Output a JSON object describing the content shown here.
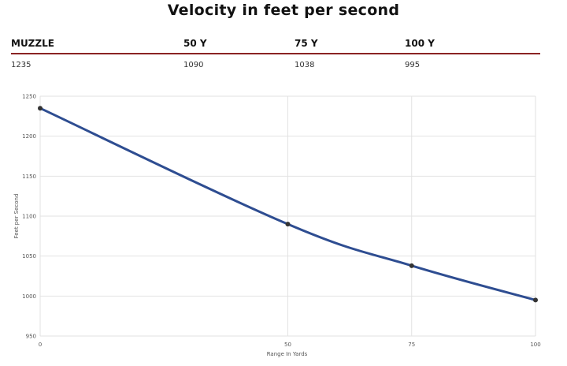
{
  "page": {
    "title": "Velocity in feet per second"
  },
  "table": {
    "headers": [
      "MUZZLE",
      "50 Y",
      "75 Y",
      "100 Y"
    ],
    "values": [
      "1235",
      "1090",
      "1038",
      "995"
    ]
  },
  "chart_data": {
    "type": "line",
    "x": [
      0,
      50,
      75,
      100
    ],
    "x_ticks": [
      "0",
      "50",
      "75",
      "100"
    ],
    "series": [
      {
        "values": [
          1235,
          1090,
          1038,
          995
        ]
      }
    ],
    "xlabel": "Range In Yards",
    "ylabel": "Feet per Second",
    "ylim": [
      950,
      1250
    ],
    "y_ticks": [
      950,
      1000,
      1050,
      1100,
      1150,
      1200,
      1250
    ],
    "grid": true,
    "line_color": "#2e4d91",
    "point_color": "#333333"
  }
}
